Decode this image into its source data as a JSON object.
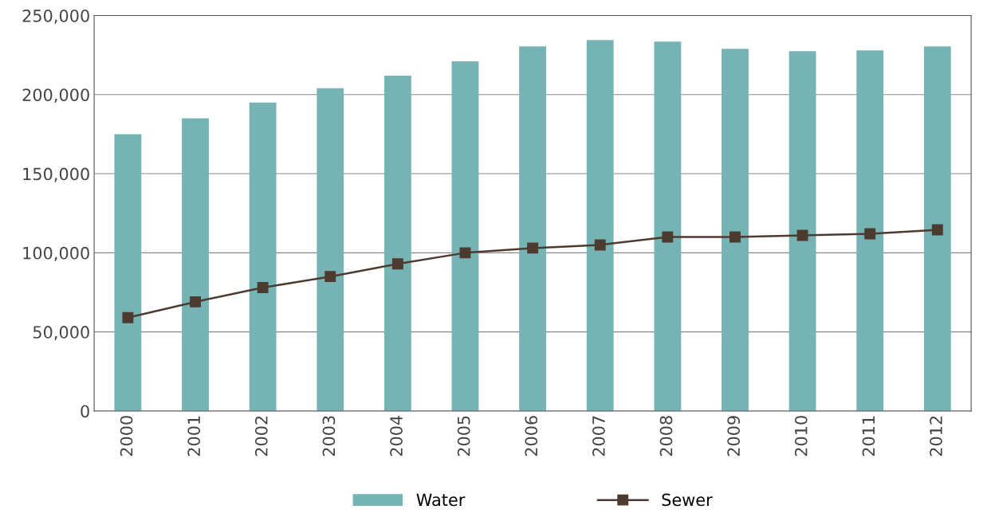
{
  "chart_data": {
    "type": "bar",
    "categories": [
      "2000",
      "2001",
      "2002",
      "2003",
      "2004",
      "2005",
      "2006",
      "2007",
      "2008",
      "2009",
      "2010",
      "2011",
      "2012"
    ],
    "series": [
      {
        "name": "Water",
        "color": "#76b3b4",
        "values": [
          175000,
          185000,
          195000,
          204000,
          212000,
          221000,
          230500,
          234500,
          233500,
          229000,
          227500,
          228000,
          230500
        ]
      },
      {
        "name": "Sewer",
        "type": "line",
        "color": "#4e3b30",
        "values": [
          59000,
          69000,
          78000,
          85000,
          93000,
          100000,
          103000,
          105000,
          110000,
          110000,
          111000,
          112000,
          114500
        ]
      }
    ],
    "ylim": [
      0,
      250000
    ],
    "yticks": [
      {
        "value": 0,
        "label": "0"
      },
      {
        "value": 50000,
        "label": "50,000"
      },
      {
        "value": 100000,
        "label": "100,000"
      },
      {
        "value": 150000,
        "label": "150,000"
      },
      {
        "value": 200000,
        "label": "200,000"
      },
      {
        "value": 250000,
        "label": "250,000"
      }
    ],
    "grid": "y",
    "legend": "bottom",
    "marker": "square"
  }
}
